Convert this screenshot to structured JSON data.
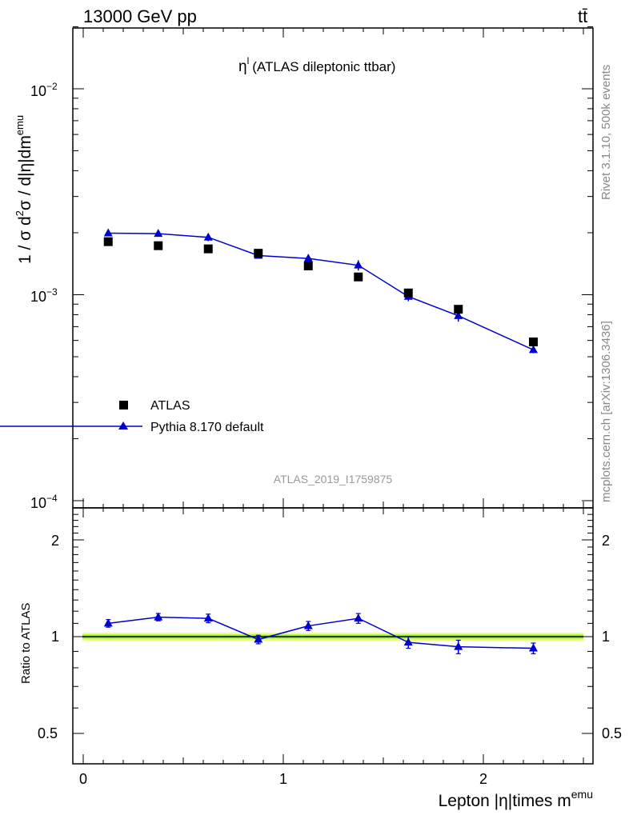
{
  "header": {
    "energy": "13000 GeV pp",
    "process": "tt̄"
  },
  "side_labels": {
    "rivet": "Rivet 3.1.10,  500k events",
    "mcplots": "mcplots.cern.ch [arXiv:1306.3436]"
  },
  "main_plot": {
    "title_var": "η",
    "title_sup": "l",
    "title_rest": "(ATLAS dileptonic ttbar)",
    "analysis_id": "ATLAS_2019_I1759875",
    "ylabel_parts": {
      "a": "1 / σ  d",
      "a_sup": "2",
      "b": "σ / d|η|dm",
      "b_sup": "emu"
    },
    "ytick_labels": [
      {
        "base": "10",
        "exp": "−2"
      },
      {
        "base": "10",
        "exp": "−3"
      },
      {
        "base": "10",
        "exp": "−4"
      }
    ]
  },
  "legend": {
    "atlas": "ATLAS",
    "pythia": "Pythia 8.170 default"
  },
  "ratio_plot": {
    "ylabel": "Ratio to ATLAS",
    "ytick_labels": [
      "2",
      "1",
      "0.5"
    ]
  },
  "xaxis": {
    "label": "Lepton |η|times m",
    "label_sup": "emu",
    "tick_labels": [
      "0",
      "1",
      "2"
    ]
  },
  "colors": {
    "data": "#000000",
    "mc": "#0000cc",
    "band_inner": "#99ee33",
    "band_outer": "#eeff88"
  },
  "chart_data": [
    {
      "type": "scatter",
      "title": "η^l (ATLAS dileptonic ttbar)",
      "xlabel": "Lepton |η|times m^emu",
      "ylabel": "1 / σ d²σ / d|η|dm^emu",
      "yscale": "log",
      "xlim": [
        -0.1,
        2.55
      ],
      "ylim": [
        0.0001,
        0.02
      ],
      "legend_position": "middle-left",
      "x": [
        0.125,
        0.375,
        0.625,
        0.875,
        1.125,
        1.375,
        1.625,
        1.875,
        2.25
      ],
      "series": [
        {
          "name": "ATLAS",
          "values": [
            0.00181,
            0.00173,
            0.00167,
            0.00159,
            0.00138,
            0.00122,
            0.00102,
            0.00085,
            0.00059
          ]
        },
        {
          "name": "Pythia 8.170 default",
          "values": [
            0.00199,
            0.00198,
            0.0019,
            0.00155,
            0.0015,
            0.00139,
            0.00098,
            0.00079,
            0.00054
          ],
          "errors": [
            4e-05,
            4e-05,
            8e-05,
            4e-05,
            6e-05,
            8e-05,
            5e-05,
            5e-05,
            2e-05
          ]
        }
      ]
    },
    {
      "type": "line",
      "ylabel": "Ratio to ATLAS",
      "xlim": [
        -0.1,
        2.55
      ],
      "ylim": [
        0.4,
        2.5
      ],
      "yscale": "log",
      "x": [
        0.125,
        0.375,
        0.625,
        0.875,
        1.125,
        1.375,
        1.625,
        1.875,
        2.25
      ],
      "band": {
        "inner": 0.015,
        "outer": 0.03
      },
      "series": [
        {
          "name": "Pythia 8.170 default",
          "values": [
            1.1,
            1.15,
            1.14,
            0.98,
            1.08,
            1.14,
            0.96,
            0.93,
            0.92
          ],
          "errors": [
            0.03,
            0.03,
            0.035,
            0.03,
            0.035,
            0.04,
            0.04,
            0.045,
            0.035
          ]
        }
      ]
    }
  ]
}
